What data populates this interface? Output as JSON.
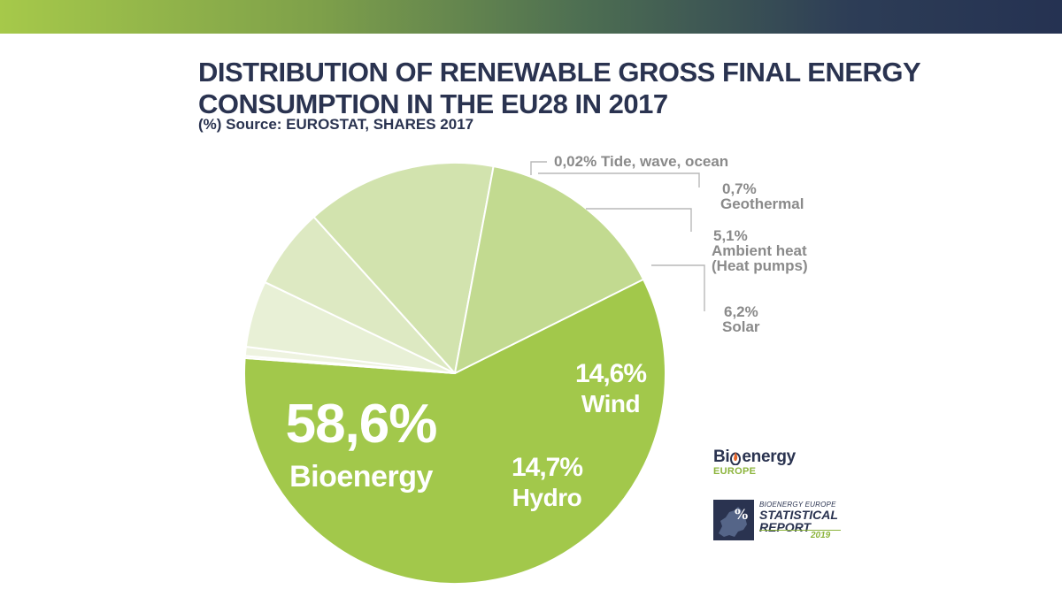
{
  "header": {
    "title": "DISTRIBUTION OF RENEWABLE GROSS FINAL ENERGY CONSUMPTION IN THE EU28 IN 2017",
    "subtitle": "(%) Source: EUROSTAT, SHARES 2017"
  },
  "chart_data": {
    "type": "pie",
    "title": "DISTRIBUTION OF RENEWABLE GROSS FINAL ENERGY CONSUMPTION IN THE EU28 IN 2017",
    "subtitle": "(%) Source: EUROSTAT, SHARES 2017",
    "slices": [
      {
        "label": "Bioenergy",
        "value": 58.6,
        "value_label": "58,6%",
        "color": "#a2c84b",
        "label_inside": true,
        "label_lines": [
          "Bioenergy"
        ]
      },
      {
        "label": "Tide, wave, ocean",
        "value": 0.02,
        "value_label": "0,02%",
        "color": "#eef3e0",
        "label_inside": false,
        "label_lines": [
          "Tide, wave, ocean"
        ]
      },
      {
        "label": "Geothermal",
        "value": 0.7,
        "value_label": "0,7%",
        "color": "#eef3e0",
        "label_inside": false,
        "label_lines": [
          "Geothermal"
        ]
      },
      {
        "label": "Ambient heat (Heat pumps)",
        "value": 5.1,
        "value_label": "5,1%",
        "color": "#e8f0d6",
        "label_inside": false,
        "label_lines": [
          "Ambient heat",
          "(Heat pumps)"
        ]
      },
      {
        "label": "Solar",
        "value": 6.2,
        "value_label": "6,2%",
        "color": "#dde9c2",
        "label_inside": false,
        "label_lines": [
          "Solar"
        ]
      },
      {
        "label": "Wind",
        "value": 14.6,
        "value_label": "14,6%",
        "color": "#d2e3ae",
        "label_inside": true,
        "label_lines": [
          "Wind"
        ]
      },
      {
        "label": "Hydro",
        "value": 14.7,
        "value_label": "14,7%",
        "color": "#c2da90",
        "label_inside": true,
        "label_lines": [
          "Hydro"
        ]
      }
    ]
  },
  "logo": {
    "brand_left": "Bi",
    "brand_right": "energy",
    "brand_sub": "EUROPE"
  },
  "report": {
    "brand": "BIOENERGY EUROPE",
    "title_line1": "STATISTICAL",
    "title_line2": "REPORT",
    "year": "2019"
  },
  "colors": {
    "navy": "#2a3350",
    "green": "#a2c84b",
    "annotation_gray": "#8a8a8a"
  }
}
